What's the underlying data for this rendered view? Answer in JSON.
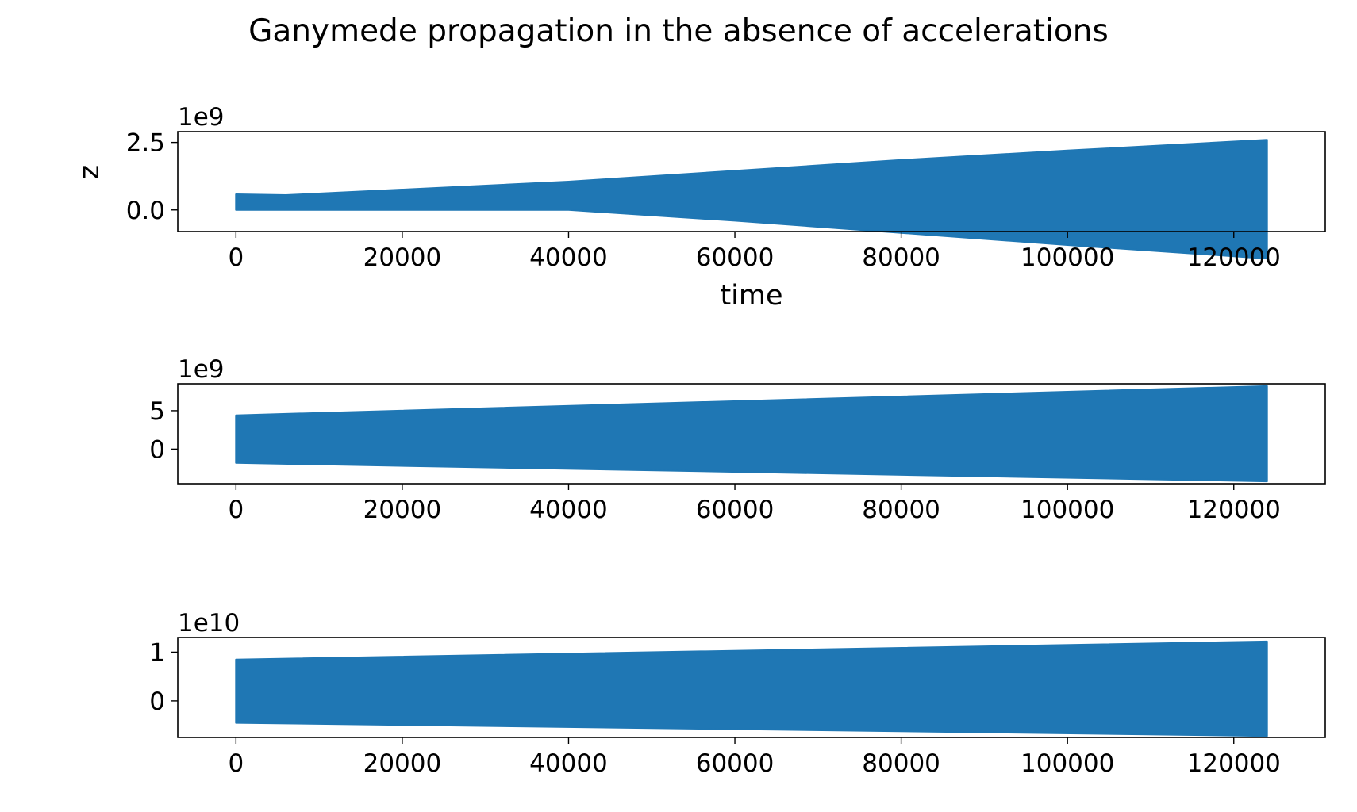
{
  "title": "Ganymede propagation in the absence of accelerations",
  "colors": {
    "series": "#1f77b4",
    "axis": "#000000",
    "background": "#ffffff"
  },
  "chart_data": [
    {
      "type": "area",
      "xlabel": "time",
      "ylabel": "z",
      "offset_text": "1e9",
      "xlim": [
        -7000,
        131000
      ],
      "ylim": [
        -0.8,
        2.9
      ],
      "scale": 1000000000,
      "xticks": [
        0,
        20000,
        40000,
        60000,
        80000,
        100000,
        120000
      ],
      "xtick_labels": [
        "0",
        "20000",
        "40000",
        "60000",
        "80000",
        "100000",
        "120000"
      ],
      "yticks": [
        0,
        2.5
      ],
      "ytick_labels": [
        "0.0",
        "2.5"
      ],
      "grid": false,
      "series": [
        {
          "x": [
            0,
            6000,
            40000,
            60000,
            80000,
            100000,
            124000
          ],
          "upper": [
            0.58,
            0.55,
            1.05,
            1.45,
            1.85,
            2.2,
            2.6
          ],
          "lower": [
            0.0,
            0.0,
            0.0,
            -0.4,
            -0.85,
            -1.3,
            -1.8
          ]
        }
      ]
    },
    {
      "type": "area",
      "xlabel": "",
      "ylabel": "",
      "offset_text": "1e9",
      "xlim": [
        -7000,
        131000
      ],
      "ylim": [
        -4.5,
        8.5
      ],
      "scale": 1000000000,
      "xticks": [
        0,
        20000,
        40000,
        60000,
        80000,
        100000,
        120000
      ],
      "xtick_labels": [
        "0",
        "20000",
        "40000",
        "60000",
        "80000",
        "100000",
        "120000"
      ],
      "yticks": [
        0,
        5
      ],
      "ytick_labels": [
        "0",
        "5"
      ],
      "grid": false,
      "series": [
        {
          "x": [
            0,
            124000
          ],
          "upper": [
            4.4,
            8.2
          ],
          "lower": [
            -1.8,
            -4.2
          ]
        }
      ]
    },
    {
      "type": "area",
      "xlabel": "",
      "ylabel": "",
      "offset_text": "1e10",
      "xlim": [
        -7000,
        131000
      ],
      "ylim": [
        -0.75,
        1.3
      ],
      "scale": 10000000000,
      "xticks": [
        0,
        20000,
        40000,
        60000,
        80000,
        100000,
        120000
      ],
      "xtick_labels": [
        "0",
        "20000",
        "40000",
        "60000",
        "80000",
        "100000",
        "120000"
      ],
      "yticks": [
        0,
        1
      ],
      "ytick_labels": [
        "0",
        "1"
      ],
      "grid": false,
      "series": [
        {
          "x": [
            0,
            124000
          ],
          "upper": [
            0.85,
            1.22
          ],
          "lower": [
            -0.45,
            -0.72
          ]
        }
      ]
    }
  ]
}
